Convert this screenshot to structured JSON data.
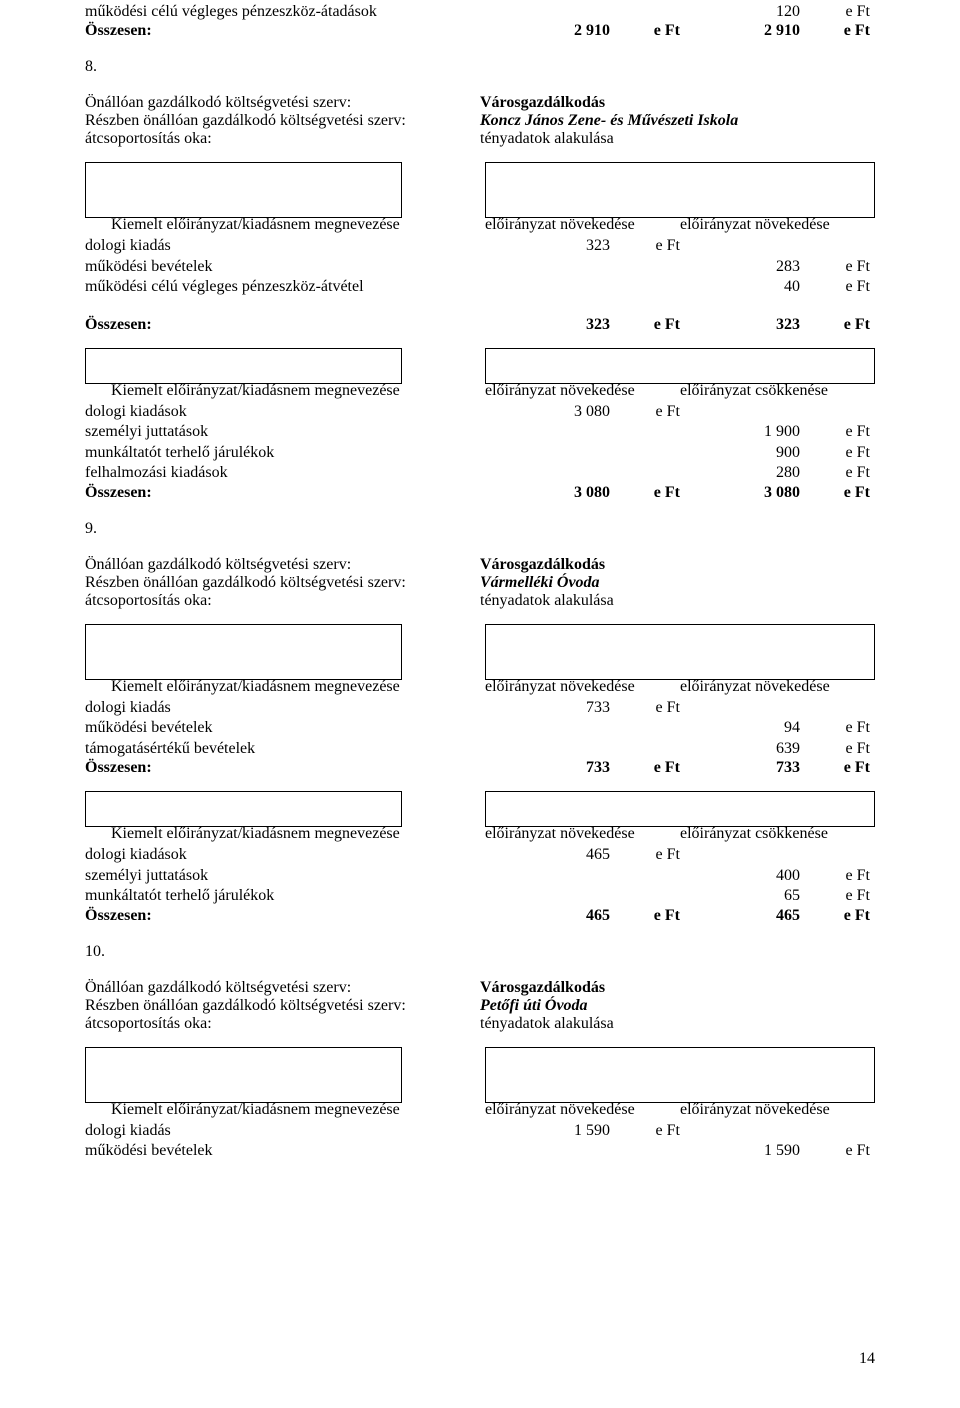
{
  "top_rows": [
    {
      "label": "működési célú végleges pénzeszköz-átadások",
      "v1": "",
      "u1": "",
      "v2": "120",
      "u2": "e Ft"
    }
  ],
  "top_total": {
    "label": "Összesen:",
    "v1": "2 910",
    "u1": "e Ft",
    "v2": "2 910",
    "u2": "e Ft"
  },
  "s8_num": "8.",
  "s8_block": [
    {
      "l": "Önállóan gazdálkodó költségvetési szerv:",
      "v": "Városgazdálkodás",
      "style": "bold"
    },
    {
      "l": "Részben önállóan gazdálkodó költségvetési szerv:",
      "v": "Koncz János Zene- és Művészeti Iskola",
      "style": "italic"
    },
    {
      "l": "átcsoportosítás oka:",
      "v": "tényadatok alakulása",
      "style": "plain"
    }
  ],
  "s8_hdr": {
    "col1": "Kiemelt előirányzat/kiadásnem megnevezése",
    "col2": "előirányzat növekedése",
    "col3": "előirányzat növekedése"
  },
  "s8_rows": [
    {
      "label": "dologi kiadás",
      "v1": "323",
      "u1": "e Ft",
      "v2": "",
      "u2": ""
    },
    {
      "label": "működési bevételek",
      "v1": "",
      "u1": "",
      "v2": "283",
      "u2": "e Ft"
    },
    {
      "label": "működési célú végleges pénzeszköz-átvétel",
      "v1": "",
      "u1": "",
      "v2": "40",
      "u2": "e Ft"
    }
  ],
  "s8_total": {
    "label": "Összesen:",
    "v1": "323",
    "u1": "e Ft",
    "v2": "323",
    "u2": "e Ft"
  },
  "s8b_hdr": {
    "col1": "Kiemelt előirányzat/kiadásnem megnevezése",
    "col2": "előirányzat növekedése",
    "col3": "előirányzat csökkenése"
  },
  "s8b_rows": [
    {
      "label": "dologi kiadások",
      "v1": "3 080",
      "u1": "e Ft",
      "v2": "",
      "u2": ""
    },
    {
      "label": "személyi juttatások",
      "v1": "",
      "u1": "",
      "v2": "1 900",
      "u2": "e Ft"
    },
    {
      "label": "munkáltatót terhelő járulékok",
      "v1": "",
      "u1": "",
      "v2": "900",
      "u2": "e Ft"
    },
    {
      "label": "felhalmozási kiadások",
      "v1": "",
      "u1": "",
      "v2": "280",
      "u2": "e Ft"
    }
  ],
  "s8b_total": {
    "label": "Összesen:",
    "v1": "3 080",
    "u1": "e Ft",
    "v2": "3 080",
    "u2": "e Ft"
  },
  "s9_num": "9.",
  "s9_block": [
    {
      "l": "Önállóan gazdálkodó költségvetési szerv:",
      "v": "Városgazdálkodás",
      "style": "bold"
    },
    {
      "l": "Részben önállóan gazdálkodó költségvetési szerv:",
      "v": "Vármelléki Óvoda",
      "style": "italic"
    },
    {
      "l": "átcsoportosítás oka:",
      "v": "tényadatok alakulása",
      "style": "plain"
    }
  ],
  "s9_hdr": {
    "col1": "Kiemelt előirányzat/kiadásnem megnevezése",
    "col2": "előirányzat növekedése",
    "col3": "előirányzat növekedése"
  },
  "s9_rows": [
    {
      "label": "dologi kiadás",
      "v1": "733",
      "u1": "e Ft",
      "v2": "",
      "u2": ""
    },
    {
      "label": "működési bevételek",
      "v1": "",
      "u1": "",
      "v2": "94",
      "u2": "e Ft"
    },
    {
      "label": "támogatásértékű bevételek",
      "v1": "",
      "u1": "",
      "v2": "639",
      "u2": "e Ft"
    }
  ],
  "s9_total": {
    "label": "Összesen:",
    "v1": "733",
    "u1": "e Ft",
    "v2": "733",
    "u2": "e Ft"
  },
  "s9b_hdr": {
    "col1": "Kiemelt előirányzat/kiadásnem megnevezése",
    "col2": "előirányzat növekedése",
    "col3": "előirányzat csökkenése"
  },
  "s9b_rows": [
    {
      "label": "dologi kiadások",
      "v1": "465",
      "u1": "e Ft",
      "v2": "",
      "u2": ""
    },
    {
      "label": "személyi juttatások",
      "v1": "",
      "u1": "",
      "v2": "400",
      "u2": "e Ft"
    },
    {
      "label": "munkáltatót terhelő járulékok",
      "v1": "",
      "u1": "",
      "v2": "65",
      "u2": "e Ft"
    }
  ],
  "s9b_total": {
    "label": "Összesen:",
    "v1": "465",
    "u1": "e Ft",
    "v2": "465",
    "u2": "e Ft"
  },
  "s10_num": "10.",
  "s10_block": [
    {
      "l": "Önállóan gazdálkodó költségvetési szerv:",
      "v": "Városgazdálkodás",
      "style": "bold"
    },
    {
      "l": "Részben önállóan gazdálkodó költségvetési szerv:",
      "v": "Petőfi úti Óvoda",
      "style": "italic"
    },
    {
      "l": "átcsoportosítás oka:",
      "v": "tényadatok alakulása",
      "style": "plain"
    }
  ],
  "s10_hdr": {
    "col1": "Kiemelt előirányzat/kiadásnem megnevezése",
    "col2": "előirányzat növekedése",
    "col3": "előirányzat növekedése"
  },
  "s10_rows": [
    {
      "label": "dologi kiadás",
      "v1": "1 590",
      "u1": "e Ft",
      "v2": "",
      "u2": ""
    },
    {
      "label": "működési bevételek",
      "v1": "",
      "u1": "",
      "v2": "1 590",
      "u2": "e Ft"
    }
  ],
  "page_num": "14"
}
